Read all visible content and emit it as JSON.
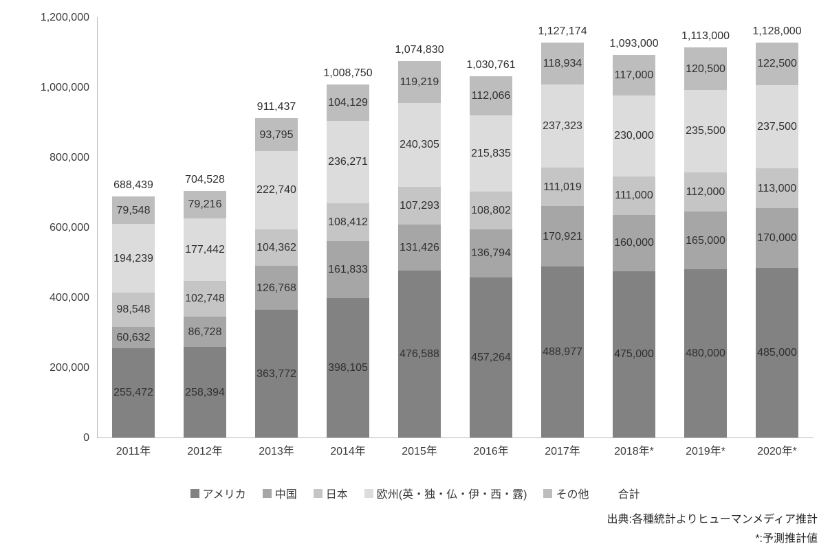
{
  "chart_data": {
    "type": "bar",
    "stacked": true,
    "title": "",
    "xlabel": "",
    "ylabel": "",
    "categories": [
      "2011年",
      "2012年",
      "2013年",
      "2014年",
      "2015年",
      "2016年",
      "2017年",
      "2018年*",
      "2019年*",
      "2020年*"
    ],
    "series": [
      {
        "name": "アメリカ",
        "color": "#828282",
        "values": [
          255472,
          258394,
          363772,
          398105,
          476588,
          457264,
          488977,
          475000,
          480000,
          485000
        ]
      },
      {
        "name": "中国",
        "color": "#a6a6a6",
        "values": [
          60632,
          86728,
          126768,
          161833,
          131426,
          136794,
          170921,
          160000,
          165000,
          170000
        ]
      },
      {
        "name": "日本",
        "color": "#c5c5c5",
        "values": [
          98548,
          102748,
          104362,
          108412,
          107293,
          108802,
          111019,
          111000,
          112000,
          113000
        ]
      },
      {
        "name": "欧州(英・独・仏・伊・西・露)",
        "color": "#dcdcdc",
        "values": [
          194239,
          177442,
          222740,
          236271,
          240305,
          215835,
          237323,
          230000,
          235500,
          237500
        ]
      },
      {
        "name": "その他",
        "color": "#bdbdbd",
        "values": [
          79548,
          79216,
          93795,
          104129,
          119219,
          112066,
          118934,
          117000,
          120500,
          122500
        ]
      }
    ],
    "totals": {
      "name": "合計",
      "color": "transparent",
      "values": [
        688439,
        704528,
        911437,
        1008750,
        1074830,
        1030761,
        1127174,
        1093000,
        1113000,
        1128000
      ]
    },
    "ylim": [
      0,
      1200000
    ],
    "ytick_step": 200000,
    "grid": false,
    "legend_position": "bottom",
    "source_note": "出典:各種統計よりヒューマンメディア推計",
    "footnote": "*:予測推計値"
  }
}
